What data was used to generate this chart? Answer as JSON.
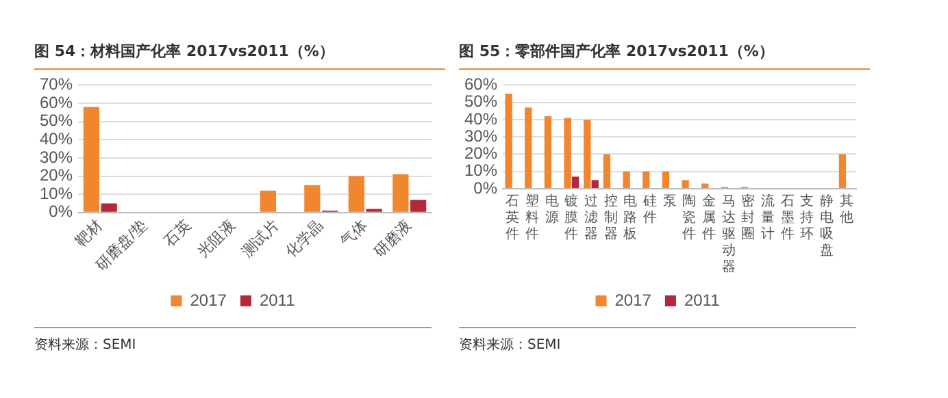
{
  "chart_data": [
    {
      "type": "bar",
      "title": "图 54：材料国产化率 2017vs2011（%）",
      "categories": [
        "靶材",
        "研磨盘/垫",
        "石英",
        "光阻液",
        "测试片",
        "化学晶",
        "气体",
        "研磨液"
      ],
      "series": [
        {
          "name": "2017",
          "color": "#f0862e",
          "values": [
            58,
            0,
            0,
            0,
            12,
            15,
            20,
            21
          ]
        },
        {
          "name": "2011",
          "color": "#b3283c",
          "values": [
            5,
            0,
            0,
            0,
            0,
            1,
            2,
            7
          ]
        }
      ],
      "ylim": [
        0,
        70
      ],
      "yticks": [
        {
          "value": 0,
          "label": "0%"
        },
        {
          "value": 10,
          "label": "10%"
        },
        {
          "value": 20,
          "label": "20%"
        },
        {
          "value": 30,
          "label": "30%"
        },
        {
          "value": 40,
          "label": "40%"
        },
        {
          "value": 50,
          "label": "50%"
        },
        {
          "value": 60,
          "label": "60%"
        },
        {
          "value": 70,
          "label": "70%"
        }
      ],
      "grid": "y",
      "legend": "bottom",
      "annotations": [
        "资料来源：SEMI"
      ]
    },
    {
      "type": "bar",
      "title": "图 55：零部件国产化率 2017vs2011（%）",
      "categories": [
        "石英件",
        "塑料件",
        "电源",
        "镀膜件",
        "过滤器",
        "控制器",
        "电路板",
        "硅件",
        "泵",
        "陶瓷件",
        "金属件",
        "马达驱动器",
        "密封圈",
        "流量计",
        "石墨件",
        "支持环",
        "静电吸盘",
        "其他"
      ],
      "series": [
        {
          "name": "2017",
          "color": "#f0862e",
          "values": [
            55,
            47,
            42,
            41,
            40,
            20,
            10,
            10,
            10,
            5,
            3,
            1,
            1,
            0,
            0,
            0,
            0,
            20
          ]
        },
        {
          "name": "2011",
          "color": "#b3283c",
          "values": [
            0,
            0,
            0,
            7,
            5,
            0,
            0,
            0,
            0,
            0,
            0,
            0,
            0,
            0,
            0,
            0,
            0,
            0
          ]
        }
      ],
      "ylim": [
        0,
        60
      ],
      "yticks": [
        {
          "value": 0,
          "label": "0%"
        },
        {
          "value": 10,
          "label": "10%"
        },
        {
          "value": 20,
          "label": "20%"
        },
        {
          "value": 30,
          "label": "30%"
        },
        {
          "value": 40,
          "label": "40%"
        },
        {
          "value": 50,
          "label": "50%"
        },
        {
          "value": 60,
          "label": "60%"
        }
      ],
      "grid": "y",
      "legend": "bottom",
      "annotations": [
        "资料来源：SEMI"
      ]
    }
  ]
}
